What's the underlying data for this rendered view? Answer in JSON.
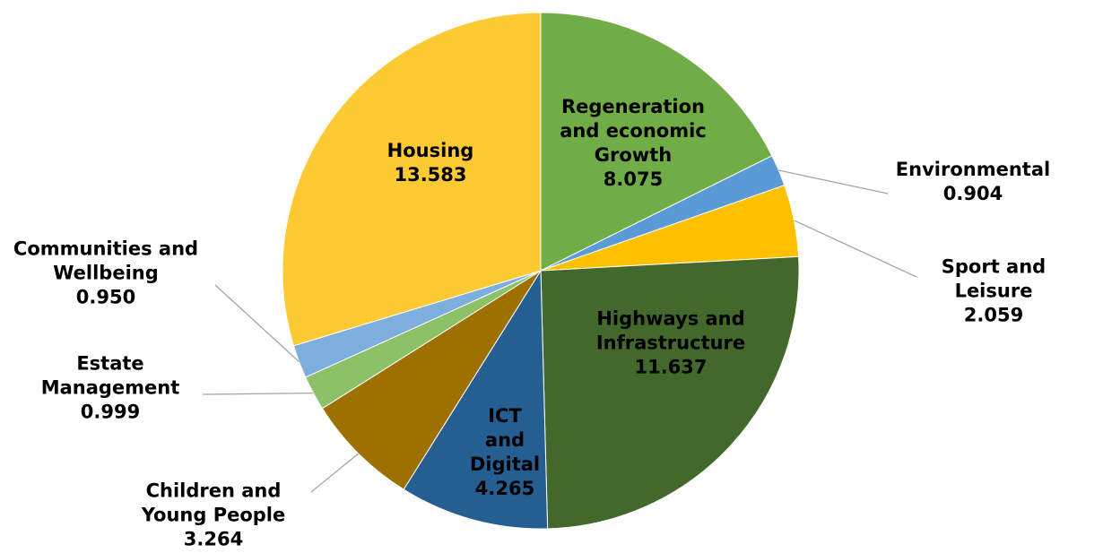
{
  "chart_data": {
    "type": "pie",
    "categories": [
      "Regeneration and economic Growth",
      "Environmental",
      "Sport and Leisure",
      "Highways and Infrastructure",
      "ICT and Digital",
      "Children and Young People",
      "Estate Management",
      "Communities and Wellbeing",
      "Housing"
    ],
    "values": [
      8.075,
      0.904,
      2.059,
      11.637,
      4.265,
      3.264,
      0.999,
      0.95,
      13.583
    ],
    "value_labels": [
      "8.075",
      "0.904",
      "2.059",
      "11.637",
      "4.265",
      "3.264",
      "0.999",
      "0.950",
      "13.583"
    ],
    "colors": [
      "#70ad47",
      "#5b9bd5",
      "#ffc000",
      "#43682b",
      "#255e91",
      "#9e7000",
      "#8cc168",
      "#7cafdd",
      "#fdca33"
    ]
  }
}
